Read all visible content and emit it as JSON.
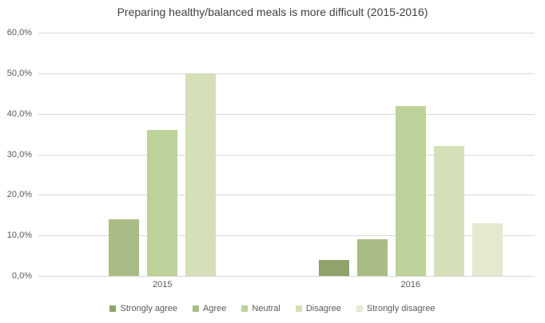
{
  "chart_data": {
    "type": "bar",
    "title": "Preparing healthy/balanced meals is more difficult (2015-2016)",
    "categories": [
      "2015",
      "2016"
    ],
    "series": [
      {
        "name": "Strongly agree",
        "color": "#8fa36b",
        "values": [
          0,
          4
        ]
      },
      {
        "name": "Agree",
        "color": "#a9bc85",
        "values": [
          14,
          9
        ]
      },
      {
        "name": "Neutral",
        "color": "#bdd29a",
        "values": [
          36,
          42
        ]
      },
      {
        "name": "Disagree",
        "color": "#d5dfb8",
        "values": [
          50,
          32
        ]
      },
      {
        "name": "Strongly disagree",
        "color": "#e3ead0",
        "values": [
          0,
          13
        ]
      }
    ],
    "xlabel": "",
    "ylabel": "",
    "ylim": [
      0,
      60
    ],
    "ytick_labels_bottom_to_top": [
      "0,0%",
      "10,0%",
      "20,0%",
      "30,0%",
      "40,0%",
      "50,0%",
      "60,0%"
    ],
    "grid": true,
    "legend_position": "bottom",
    "colors": {
      "title_text": "#404040",
      "axis_text": "#595959",
      "gridline": "#d9d9d9",
      "background": "#ffffff"
    }
  }
}
